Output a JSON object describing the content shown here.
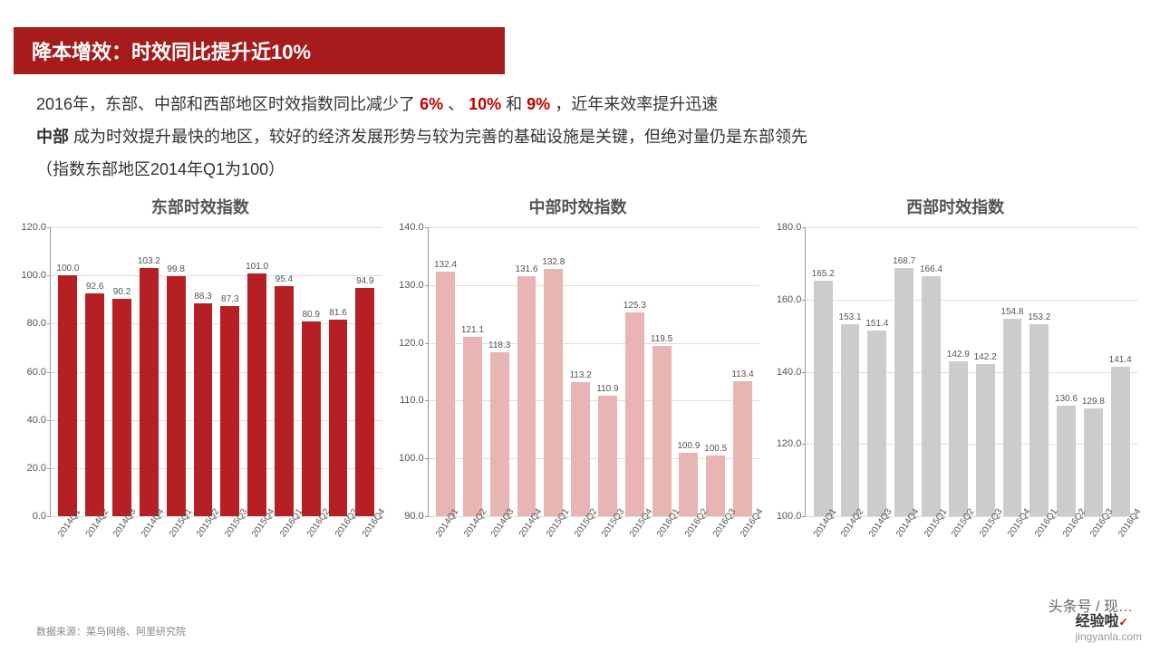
{
  "title": "降本增效：时效同比提升近10%",
  "desc_line1_a": "2016年，东部、中部和西部地区时效指数同比减少了",
  "desc_line1_b": "6%",
  "desc_line1_c": "、",
  "desc_line1_d": "10%",
  "desc_line1_e": "和",
  "desc_line1_f": "9%",
  "desc_line1_g": "，近年来效率提升迅速",
  "desc_line2_a": "中部",
  "desc_line2_b": "成为时效提升最快的地区，较好的经济发展形势与较为完善的基础设施是关键，但绝对量仍是东部领先",
  "desc_line3": "（指数东部地区2014年Q1为100）",
  "categories": [
    "2014Q1",
    "2014Q2",
    "2014Q3",
    "2014Q4",
    "2015Q1",
    "2015Q2",
    "2015Q3",
    "2015Q4",
    "2016Q1",
    "2016Q2",
    "2016Q3",
    "2016Q4"
  ],
  "charts": [
    {
      "title": "东部时效指数",
      "type": "bar",
      "values": [
        100.0,
        92.6,
        90.2,
        103.2,
        99.8,
        88.3,
        87.3,
        101.0,
        95.4,
        80.9,
        81.6,
        94.9
      ],
      "bar_color": "#b61f24",
      "grid_color": "#dddddd",
      "ymin": 0.0,
      "ymax": 120.0,
      "ytick_step": 20.0,
      "label_fontsize": 10,
      "title_fontsize": 18
    },
    {
      "title": "中部时效指数",
      "type": "bar",
      "values": [
        132.4,
        121.1,
        118.3,
        131.6,
        132.8,
        113.2,
        110.9,
        125.3,
        119.5,
        100.9,
        100.5,
        113.4
      ],
      "bar_color": "#e8b4b4",
      "grid_color": "#dddddd",
      "ymin": 90.0,
      "ymax": 140.0,
      "ytick_step": 10.0,
      "label_fontsize": 10,
      "title_fontsize": 18
    },
    {
      "title": "西部时效指数",
      "type": "bar",
      "values": [
        165.2,
        153.1,
        151.4,
        168.7,
        166.4,
        142.9,
        142.2,
        154.8,
        153.2,
        130.6,
        129.8,
        141.4
      ],
      "bar_color": "#cccccc",
      "grid_color": "#dddddd",
      "ymin": 100.0,
      "ymax": 180.0,
      "ytick_step": 20.0,
      "label_fontsize": 10,
      "title_fontsize": 18
    }
  ],
  "footer": "数据来源：菜鸟网络、阿里研究院",
  "credit": "头条号 / 现…",
  "watermark_logo": "经验啦",
  "watermark_url": "jingyanla.com",
  "background_color": "#ffffff"
}
